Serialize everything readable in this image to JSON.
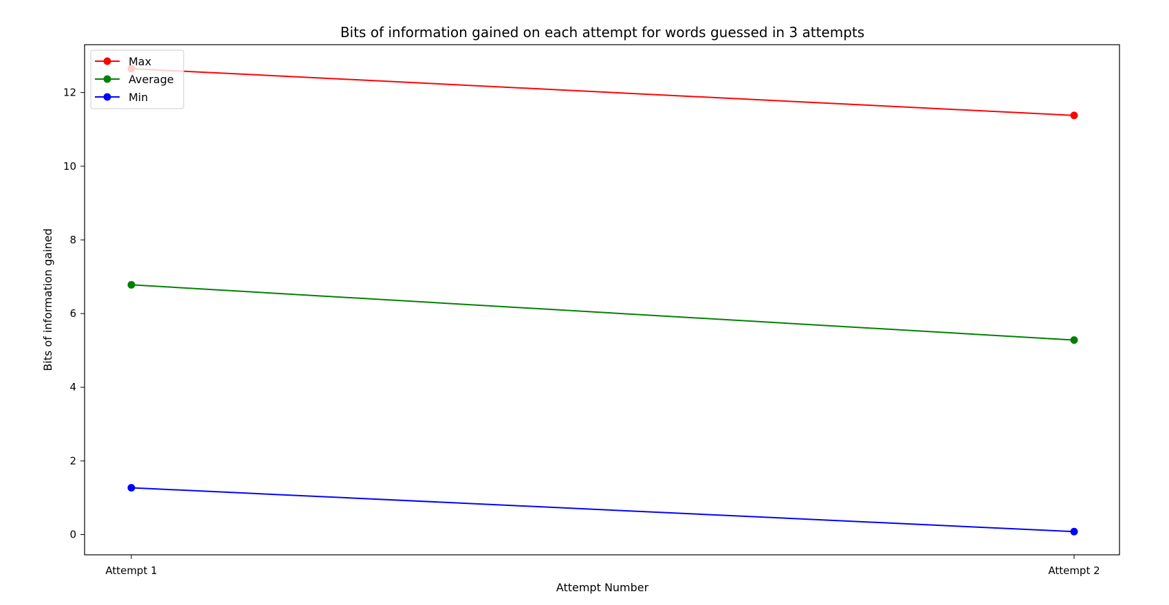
{
  "chart_data": {
    "type": "line",
    "title": "Bits of information gained on each attempt for words guessed in 3 attempts",
    "xlabel": "Attempt Number",
    "ylabel": "Bits of information gained",
    "categories": [
      "Attempt 1",
      "Attempt 2"
    ],
    "ylim": [
      -0.55,
      13.3
    ],
    "yticks": [
      0,
      2,
      4,
      6,
      8,
      10,
      12
    ],
    "grid": false,
    "legend_position": "top-left",
    "series": [
      {
        "name": "Max",
        "color": "#ff0000",
        "values": [
          12.65,
          11.38
        ]
      },
      {
        "name": "Average",
        "color": "#008000",
        "values": [
          6.78,
          5.28
        ]
      },
      {
        "name": "Min",
        "color": "#0000ff",
        "values": [
          1.27,
          0.08
        ]
      }
    ]
  }
}
